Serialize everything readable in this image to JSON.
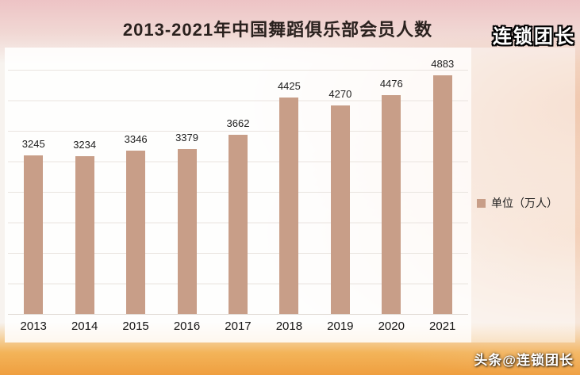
{
  "watermarks": {
    "top_right": "连锁团长",
    "bottom_right": "头条@连锁团长"
  },
  "chart_data": {
    "type": "bar",
    "title": "2013-2021年中国舞蹈俱乐部会员人数",
    "categories": [
      "2013",
      "2014",
      "2015",
      "2016",
      "2017",
      "2018",
      "2019",
      "2020",
      "2021"
    ],
    "values": [
      3245,
      3234,
      3346,
      3379,
      3662,
      4425,
      4270,
      4476,
      4883
    ],
    "legend": [
      "单位（万人）"
    ],
    "legend_position": "right",
    "xlabel": "",
    "ylabel": "",
    "ylim": [
      0,
      5000
    ],
    "grid": true,
    "bar_color": "#c89e88",
    "grid_color": "#e9e4df"
  }
}
